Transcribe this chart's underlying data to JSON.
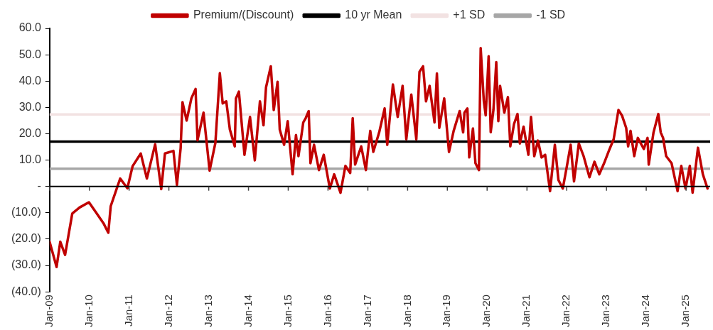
{
  "chart_data": {
    "type": "line",
    "legend": "top",
    "grid": false,
    "xlim": [
      "2009-01-01",
      "2025-08-10"
    ],
    "xticks": [
      {
        "value": "2009-01",
        "label": "Jan-09"
      },
      {
        "value": "2010-01",
        "label": "Jan-10"
      },
      {
        "value": "2011-01",
        "label": "Jan-11"
      },
      {
        "value": "2012-01",
        "label": "Jan-12"
      },
      {
        "value": "2013-01",
        "label": "Jan-13"
      },
      {
        "value": "2014-01",
        "label": "Jan-14"
      },
      {
        "value": "2015-01",
        "label": "Jan-15"
      },
      {
        "value": "2016-01",
        "label": "Jan-16"
      },
      {
        "value": "2017-01",
        "label": "Jan-17"
      },
      {
        "value": "2018-01",
        "label": "Jan-18"
      },
      {
        "value": "2019-01",
        "label": "Jan-19"
      },
      {
        "value": "2020-01",
        "label": "Jan-20"
      },
      {
        "value": "2021-01",
        "label": "Jan-21"
      },
      {
        "value": "2022-01",
        "label": "Jan-22"
      },
      {
        "value": "2023-01",
        "label": "Jan-23"
      },
      {
        "value": "2024-01",
        "label": "Jan-24"
      },
      {
        "value": "2025-01",
        "label": "Jan-25"
      }
    ],
    "ylim": [
      -40,
      60
    ],
    "yticks": [
      {
        "value": 60,
        "label": "60.0"
      },
      {
        "value": 50,
        "label": "50.0"
      },
      {
        "value": 40,
        "label": "40.0"
      },
      {
        "value": 30,
        "label": "30.0"
      },
      {
        "value": 20,
        "label": "20.0"
      },
      {
        "value": 10,
        "label": "10.0"
      },
      {
        "value": 0,
        "label": "-"
      },
      {
        "value": -10,
        "label": "(10.0)"
      },
      {
        "value": -20,
        "label": "(20.0)"
      },
      {
        "value": -30,
        "label": "(30.0)"
      },
      {
        "value": -40,
        "label": "(40.0)"
      }
    ],
    "series": [
      {
        "name": "Premium/(Discount)",
        "color": "#c00000",
        "x": [
          "2009-01-01",
          "2009-03-06",
          "2009-04-09",
          "2009-05-23",
          "2009-07-28",
          "2009-10-03",
          "2009-12-28",
          "2010-03-05",
          "2010-05-11",
          "2010-06-24",
          "2010-07-16",
          "2010-10-11",
          "2010-12-16",
          "2011-02-02",
          "2011-04-18",
          "2011-06-13",
          "2011-08-28",
          "2011-10-23",
          "2011-11-26",
          "2012-02-12",
          "2012-03-15",
          "2012-04-18",
          "2012-05-05",
          "2012-06-12",
          "2012-07-26",
          "2012-09-02",
          "2012-09-20",
          "2012-11-14",
          "2013-01-09",
          "2013-03-03",
          "2013-04-13",
          "2013-05-09",
          "2013-06-11",
          "2013-07-14",
          "2013-08-28",
          "2013-09-08",
          "2013-10-05",
          "2013-11-25",
          "2014-01-15",
          "2014-02-28",
          "2014-04-16",
          "2014-05-19",
          "2014-06-11",
          "2014-07-25",
          "2014-08-21",
          "2014-09-25",
          "2014-10-15",
          "2014-11-24",
          "2014-12-27",
          "2015-02-10",
          "2015-03-13",
          "2015-04-05",
          "2015-05-19",
          "2015-06-10",
          "2015-07-08",
          "2015-07-24",
          "2015-08-26",
          "2015-10-10",
          "2015-11-23",
          "2016-01-18",
          "2016-02-27",
          "2016-04-25",
          "2016-06-09",
          "2016-07-23",
          "2016-08-15",
          "2016-09-06",
          "2016-11-01",
          "2016-12-14",
          "2017-01-23",
          "2017-02-20",
          "2017-04-15",
          "2017-06-04",
          "2017-06-28",
          "2017-08-19",
          "2017-10-02",
          "2017-11-16",
          "2017-12-20",
          "2018-02-04",
          "2018-03-22",
          "2018-04-20",
          "2018-05-23",
          "2018-06-19",
          "2018-07-22",
          "2018-09-05",
          "2018-09-27",
          "2018-10-19",
          "2018-12-03",
          "2019-01-16",
          "2019-02-28",
          "2019-04-24",
          "2019-05-26",
          "2019-06-07",
          "2019-07-04",
          "2019-07-21",
          "2019-08-24",
          "2019-09-16",
          "2019-10-18",
          "2019-11-03",
          "2019-12-02",
          "2019-12-19",
          "2020-01-15",
          "2020-02-03",
          "2020-02-28",
          "2020-03-25",
          "2020-04-13",
          "2020-04-29",
          "2020-06-07",
          "2020-07-10",
          "2020-08-01",
          "2020-09-04",
          "2020-10-06",
          "2020-10-28",
          "2020-12-01",
          "2021-01-14",
          "2021-02-07",
          "2021-03-09",
          "2021-04-12",
          "2021-05-15",
          "2021-06-17",
          "2021-08-01",
          "2021-09-14",
          "2021-10-17",
          "2021-11-26",
          "2022-01-03",
          "2022-02-06",
          "2022-03-09",
          "2022-04-22",
          "2022-06-05",
          "2022-07-29",
          "2022-09-13",
          "2022-10-27",
          "2022-12-10",
          "2023-01-24",
          "2023-03-08",
          "2023-04-21",
          "2023-05-24",
          "2023-07-01",
          "2023-07-19",
          "2023-08-10",
          "2023-09-13",
          "2023-10-16",
          "2023-12-10",
          "2024-01-13",
          "2024-01-24",
          "2024-03-08",
          "2024-04-21",
          "2024-05-13",
          "2024-06-04",
          "2024-07-02",
          "2024-08-21",
          "2024-10-15",
          "2024-11-18",
          "2024-12-27",
          "2025-02-04",
          "2025-03-02",
          "2025-04-20",
          "2025-06-04",
          "2025-07-17"
        ],
        "values": [
          -21,
          -30.6,
          -21,
          -26,
          -10.3,
          -8,
          -6,
          -10,
          -14,
          -17.6,
          -7.5,
          3,
          -0.7,
          7.7,
          12.5,
          3,
          16,
          -1,
          12.5,
          13.5,
          0.6,
          14.5,
          32,
          25,
          33.5,
          37,
          17.5,
          28,
          6,
          16.5,
          43,
          31.5,
          32.3,
          21.6,
          15.2,
          33.4,
          36,
          12,
          26.4,
          9.9,
          32.3,
          23.2,
          37.6,
          45.6,
          29,
          39.7,
          21.6,
          15.8,
          24.8,
          4.6,
          19.5,
          11.5,
          24.3,
          25.9,
          28.6,
          8.8,
          15.8,
          6.2,
          12,
          -0.8,
          4.6,
          -2.4,
          7.8,
          5.1,
          25.9,
          8.3,
          15.2,
          6.2,
          21.1,
          13.1,
          20.5,
          29.6,
          15.8,
          38.7,
          26.4,
          38.2,
          17.9,
          34.9,
          17.9,
          43.5,
          45.6,
          32.3,
          38.2,
          24.3,
          42.9,
          22.2,
          33.4,
          13.1,
          21.1,
          28.6,
          20.5,
          28,
          29.6,
          11,
          22,
          8.8,
          6.2,
          52.5,
          32.3,
          27,
          49.4,
          20.6,
          29,
          47.2,
          24.8,
          38.2,
          28,
          33.9,
          15.2,
          23.7,
          27.5,
          16.3,
          22.7,
          12,
          26.4,
          11.5,
          17.4,
          11,
          12,
          -1.8,
          15.8,
          2.4,
          -0.8,
          7.8,
          15.8,
          1.9,
          16.3,
          11.5,
          3.5,
          9.4,
          4.6,
          8.8,
          13.6,
          17.9,
          29,
          26.9,
          22.2,
          15.2,
          21.1,
          11.5,
          18.4,
          14.2,
          18.4,
          8.3,
          20.5,
          27.5,
          20.5,
          18.4,
          11.5,
          8.8,
          -1.8,
          7.8,
          -0.8,
          7.8,
          -2.4,
          14.7,
          4.6,
          -0.8
        ]
      },
      {
        "name": "10 yr Mean",
        "color": "#000000",
        "x": [
          "2009-01-01",
          "2025-08-10"
        ],
        "values": [
          17,
          17
        ]
      },
      {
        "name": "+1 SD",
        "color": "#f2e2e2",
        "x": [
          "2009-01-01",
          "2025-08-10"
        ],
        "values": [
          27.3,
          27.3
        ]
      },
      {
        "name": "-1 SD",
        "color": "#a6a6a6",
        "x": [
          "2009-01-01",
          "2025-08-10"
        ],
        "values": [
          6.7,
          6.7
        ]
      }
    ]
  }
}
